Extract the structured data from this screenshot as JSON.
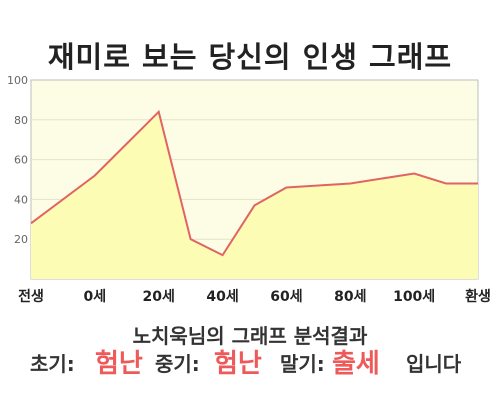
{
  "title": "재미로 보는 당신의 인생 그래프",
  "chart_data": {
    "type": "area",
    "categories": [
      "전생",
      "0세",
      "20세",
      "40세",
      "60세",
      "80세",
      "100세",
      "환생"
    ],
    "values": [
      28,
      52,
      84,
      20,
      12,
      37,
      46,
      48,
      53,
      48
    ],
    "x": [
      0,
      1,
      2,
      2.5,
      3,
      3.5,
      4,
      5,
      6,
      6.5
    ],
    "xlim": [
      0,
      7
    ],
    "ylim": [
      0,
      100
    ],
    "yticks": [
      20,
      40,
      60,
      80,
      100
    ],
    "grid": true,
    "colors": {
      "line": "#e06464",
      "fill": "#fdfcb4",
      "plot_bg": "#fdfde6"
    }
  },
  "analysis": {
    "title": "노치욱님의 그래프 분석결과",
    "early_label": "초기:",
    "early_value": "험난",
    "mid_label": "중기:",
    "mid_value": "험난",
    "late_label": "말기:",
    "late_value": "출세",
    "suffix": "입니다"
  }
}
